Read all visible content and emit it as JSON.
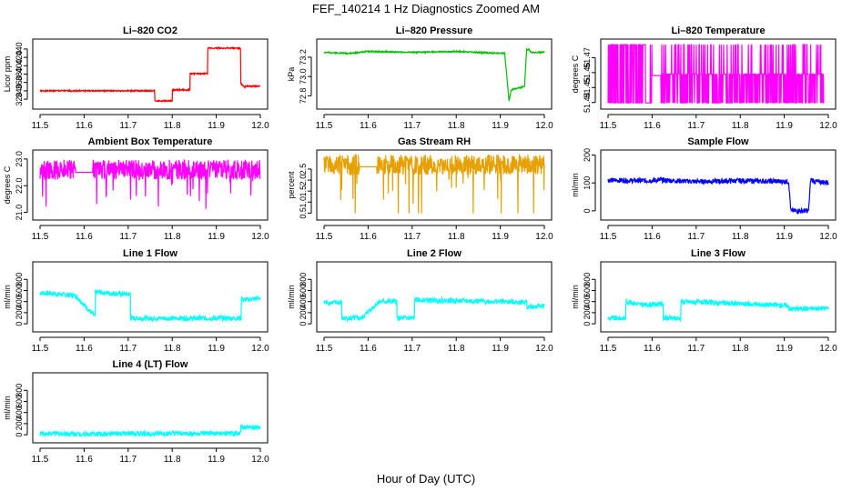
{
  "figure": {
    "title": "FEF_140214  1 Hz Diagnostics Zoomed AM",
    "xlabel": "Hour of Day (UTC)"
  },
  "chart_data": [
    {
      "type": "line",
      "title": "Li–820 CO2",
      "ylabel": "Licor ppm",
      "color": "#ff0000",
      "xlim": [
        11.5,
        12.0
      ],
      "ylim": [
        305,
        455
      ],
      "xticks": [
        11.5,
        11.6,
        11.7,
        11.8,
        11.9,
        12.0
      ],
      "xtick_labels": [
        "11.5",
        "11.6",
        "11.7",
        "11.8",
        "11.9",
        "12.0"
      ],
      "yticks": [
        320,
        340,
        360,
        380,
        400,
        420,
        440
      ],
      "ytick_labels": [
        "320",
        "340",
        "360",
        "380",
        "400",
        "420",
        "440"
      ],
      "x": [
        11.5,
        11.76,
        11.76,
        11.8,
        11.8,
        11.84,
        11.84,
        11.88,
        11.88,
        11.955,
        11.955,
        11.965,
        11.965,
        12.0
      ],
      "y": [
        340,
        340,
        316,
        316,
        342,
        342,
        381,
        381,
        442,
        442,
        357,
        349,
        351,
        351
      ],
      "noise": 1
    },
    {
      "type": "line",
      "title": "Li–820 Pressure",
      "ylabel": "kPa",
      "color": "#00c000",
      "xlim": [
        11.5,
        12.0
      ],
      "ylim": [
        72.7,
        73.35
      ],
      "xticks": [
        11.5,
        11.6,
        11.7,
        11.8,
        11.9,
        12.0
      ],
      "xtick_labels": [
        "11.5",
        "11.6",
        "11.7",
        "11.8",
        "11.9",
        "12.0"
      ],
      "yticks": [
        72.8,
        73.0,
        73.2
      ],
      "ytick_labels": [
        "72.8",
        "73.0",
        "73.2"
      ],
      "x": [
        11.5,
        11.56,
        11.6,
        11.7,
        11.8,
        11.9,
        11.91,
        11.92,
        11.925,
        11.93,
        11.95,
        11.955,
        11.96,
        11.965,
        11.97,
        12.0
      ],
      "y": [
        73.25,
        73.24,
        73.26,
        73.25,
        73.26,
        73.24,
        73.24,
        72.75,
        72.86,
        72.87,
        72.89,
        72.9,
        73.28,
        73.28,
        73.25,
        73.25
      ],
      "noise": 2
    },
    {
      "type": "line",
      "title": "Li–820 Temperature",
      "ylabel": "degrees C",
      "color": "#ff00ff",
      "xlim": [
        11.5,
        12.0
      ],
      "ylim": [
        51.438,
        51.48
      ],
      "xticks": [
        11.5,
        11.6,
        11.7,
        11.8,
        11.9,
        12.0
      ],
      "xtick_labels": [
        "11.5",
        "11.6",
        "11.7",
        "11.8",
        "11.9",
        "12.0"
      ],
      "yticks": [
        51.44,
        51.45,
        51.46,
        51.47
      ],
      "ytick_labels": [
        "51.44",
        "51.45",
        "51.46",
        "51.47"
      ],
      "x": [
        11.5,
        11.6,
        11.6,
        11.62,
        11.62,
        11.99
      ],
      "y": [
        51.458,
        51.458,
        51.458,
        51.458,
        51.458,
        51.458
      ],
      "noise": 3
    },
    {
      "type": "line",
      "title": "Ambient Box Temperature",
      "ylabel": "degrees C",
      "color": "#ff00ff",
      "xlim": [
        11.5,
        12.0
      ],
      "ylim": [
        20.85,
        23.2
      ],
      "xticks": [
        11.5,
        11.6,
        11.7,
        11.8,
        11.9,
        12.0
      ],
      "xtick_labels": [
        "11.5",
        "11.6",
        "11.7",
        "11.8",
        "11.9",
        "12.0"
      ],
      "yticks": [
        21.0,
        22.0,
        23.0
      ],
      "ytick_labels": [
        "21.0",
        "22.0",
        "23.0"
      ],
      "x": [
        11.5,
        11.58,
        11.58,
        11.62,
        11.62,
        12.0
      ],
      "y": [
        22.6,
        22.6,
        22.5,
        22.5,
        22.6,
        22.6
      ],
      "noise": 4
    },
    {
      "type": "line",
      "title": "Gas Stream RH",
      "ylabel": "percent",
      "color": "#e6a000",
      "xlim": [
        11.5,
        12.0
      ],
      "ylim": [
        0.35,
        3.2
      ],
      "xticks": [
        11.5,
        11.6,
        11.7,
        11.8,
        11.9,
        12.0
      ],
      "xtick_labels": [
        "11.5",
        "11.6",
        "11.7",
        "11.8",
        "11.9",
        "12.0"
      ],
      "yticks": [
        0.5,
        1.0,
        1.5,
        2.0,
        2.5
      ],
      "ytick_labels": [
        "0.5",
        "1.0",
        "1.5",
        "2.0",
        "2.5"
      ],
      "x": [
        11.5,
        11.58,
        11.58,
        11.62,
        11.62,
        12.0
      ],
      "y": [
        2.7,
        2.7,
        2.6,
        2.6,
        2.7,
        2.7
      ],
      "noise": 5
    },
    {
      "type": "line",
      "title": "Sample Flow",
      "ylabel": "ml/min",
      "color": "#0000ff",
      "xlim": [
        11.5,
        12.0
      ],
      "ylim": [
        -20,
        205
      ],
      "xticks": [
        11.5,
        11.6,
        11.7,
        11.8,
        11.9,
        12.0
      ],
      "xtick_labels": [
        "11.5",
        "11.6",
        "11.7",
        "11.8",
        "11.9",
        "12.0"
      ],
      "yticks": [
        0,
        100,
        200
      ],
      "ytick_labels": [
        "0",
        "100",
        "200"
      ],
      "x": [
        11.5,
        11.58,
        11.62,
        11.7,
        11.8,
        11.91,
        11.915,
        11.955,
        11.96,
        11.97,
        12.0
      ],
      "y": [
        110,
        108,
        110,
        105,
        108,
        105,
        0,
        0,
        112,
        105,
        102
      ],
      "noise": 6
    },
    {
      "type": "line",
      "title": "Line 1 Flow",
      "ylabel": "ml/min",
      "color": "#00ffff",
      "xlim": [
        11.5,
        12.0
      ],
      "ylim": [
        -80,
        1050
      ],
      "xticks": [
        11.5,
        11.6,
        11.7,
        11.8,
        11.9,
        12.0
      ],
      "xtick_labels": [
        "11.5",
        "11.6",
        "11.7",
        "11.8",
        "11.9",
        "12.0"
      ],
      "yticks": [
        0,
        200,
        400,
        600,
        800
      ],
      "ytick_labels": [
        "0",
        "200",
        "400",
        "600",
        "800"
      ],
      "x": [
        11.5,
        11.58,
        11.625,
        11.625,
        11.705,
        11.705,
        11.957,
        11.957,
        11.96,
        12.0
      ],
      "y": [
        560,
        510,
        130,
        570,
        530,
        100,
        100,
        490,
        430,
        460
      ],
      "noise": 7
    },
    {
      "type": "line",
      "title": "Line 2 Flow",
      "ylabel": "ml/min",
      "color": "#00ffff",
      "xlim": [
        11.5,
        12.0
      ],
      "ylim": [
        -80,
        1050
      ],
      "xticks": [
        11.5,
        11.6,
        11.7,
        11.8,
        11.9,
        12.0
      ],
      "xtick_labels": [
        "11.5",
        "11.6",
        "11.7",
        "11.8",
        "11.9",
        "12.0"
      ],
      "yticks": [
        0,
        200,
        400,
        600,
        800
      ],
      "ytick_labels": [
        "0",
        "200",
        "400",
        "600",
        "800"
      ],
      "x": [
        11.5,
        11.54,
        11.54,
        11.585,
        11.625,
        11.665,
        11.665,
        11.705,
        11.705,
        11.96,
        11.96,
        12.0
      ],
      "y": [
        380,
        380,
        100,
        100,
        400,
        400,
        100,
        100,
        430,
        390,
        300,
        320
      ],
      "noise": 8
    },
    {
      "type": "line",
      "title": "Line 3 Flow",
      "ylabel": "ml/min",
      "color": "#00ffff",
      "xlim": [
        11.5,
        12.0
      ],
      "ylim": [
        -80,
        1050
      ],
      "xticks": [
        11.5,
        11.6,
        11.7,
        11.8,
        11.9,
        12.0
      ],
      "xtick_labels": [
        "11.5",
        "11.6",
        "11.7",
        "11.8",
        "11.9",
        "12.0"
      ],
      "yticks": [
        0,
        200,
        400,
        600,
        800
      ],
      "ytick_labels": [
        "0",
        "200",
        "400",
        "600",
        "800"
      ],
      "x": [
        11.5,
        11.54,
        11.54,
        11.58,
        11.625,
        11.625,
        11.665,
        11.665,
        11.91,
        11.91,
        12.0
      ],
      "y": [
        100,
        100,
        400,
        340,
        360,
        100,
        100,
        400,
        330,
        270,
        280
      ],
      "noise": 9
    },
    {
      "type": "line",
      "title": "Line 4 (LT) Flow",
      "ylabel": "ml/min",
      "color": "#00ffff",
      "xlim": [
        11.5,
        12.0
      ],
      "ylim": [
        -80,
        1050
      ],
      "xticks": [
        11.5,
        11.6,
        11.7,
        11.8,
        11.9,
        12.0
      ],
      "xtick_labels": [
        "11.5",
        "11.6",
        "11.7",
        "11.8",
        "11.9",
        "12.0"
      ],
      "yticks": [
        0,
        200,
        400,
        600,
        800
      ],
      "ytick_labels": [
        "0",
        "200",
        "400",
        "600",
        "800"
      ],
      "x": [
        11.5,
        11.58,
        11.625,
        11.705,
        11.955,
        11.955,
        11.96,
        12.0
      ],
      "y": [
        20,
        20,
        10,
        20,
        20,
        150,
        130,
        130
      ],
      "noise": 10
    }
  ]
}
